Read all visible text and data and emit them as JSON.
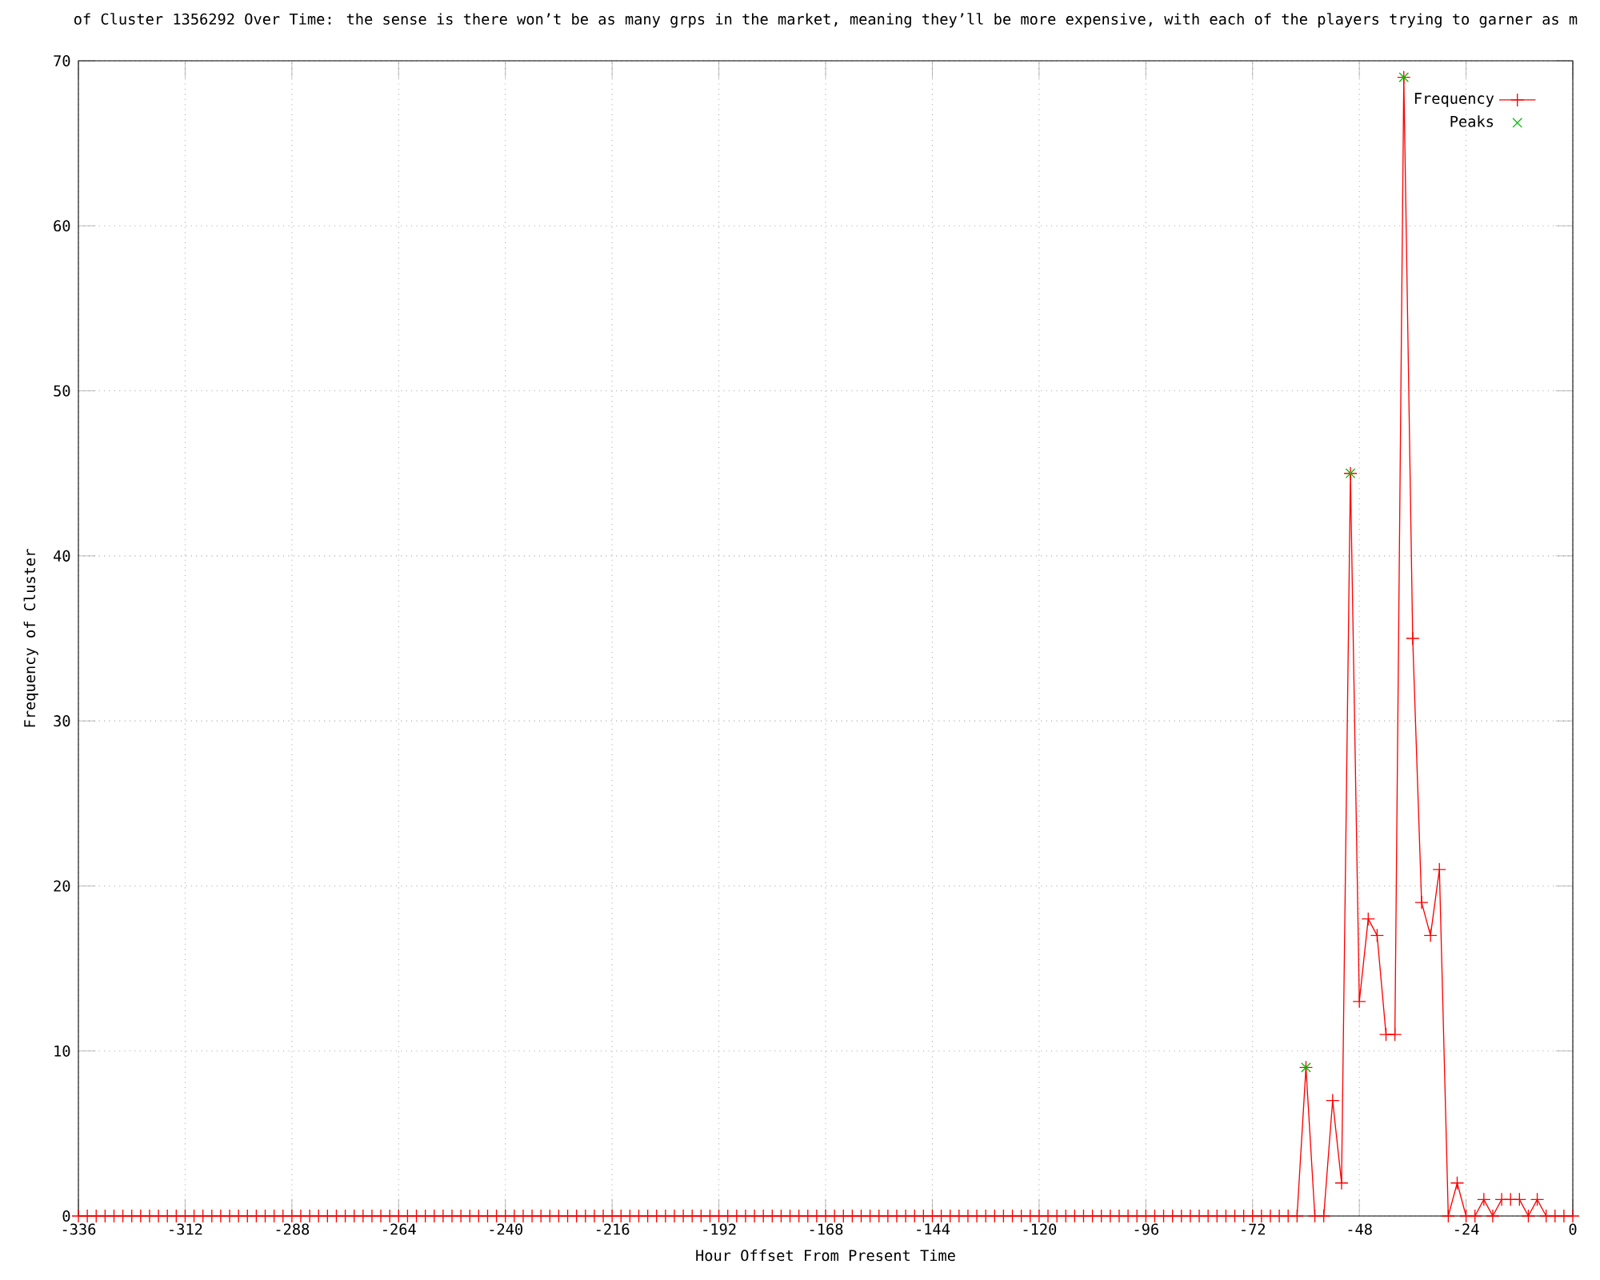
{
  "chart_data": {
    "type": "line",
    "title": "of Cluster 1356292 Over Time: the sense is there won’t be as many grps in the market, meaning they’ll be more expensive, with each of the players trying to garner as m",
    "xlabel": "Hour Offset From Present Time",
    "ylabel": "Frequency of Cluster",
    "x": [
      -336,
      -334,
      -332,
      -330,
      -328,
      -326,
      -324,
      -322,
      -320,
      -318,
      -316,
      -314,
      -312,
      -310,
      -308,
      -306,
      -304,
      -302,
      -300,
      -298,
      -296,
      -294,
      -292,
      -290,
      -288,
      -286,
      -284,
      -282,
      -280,
      -278,
      -276,
      -274,
      -272,
      -270,
      -268,
      -266,
      -264,
      -262,
      -260,
      -258,
      -256,
      -254,
      -252,
      -250,
      -248,
      -246,
      -244,
      -242,
      -240,
      -238,
      -236,
      -234,
      -232,
      -230,
      -228,
      -226,
      -224,
      -222,
      -220,
      -218,
      -216,
      -214,
      -212,
      -210,
      -208,
      -206,
      -204,
      -202,
      -200,
      -198,
      -196,
      -194,
      -192,
      -190,
      -188,
      -186,
      -184,
      -182,
      -180,
      -178,
      -176,
      -174,
      -172,
      -170,
      -168,
      -166,
      -164,
      -162,
      -160,
      -158,
      -156,
      -154,
      -152,
      -150,
      -148,
      -146,
      -144,
      -142,
      -140,
      -138,
      -136,
      -134,
      -132,
      -130,
      -128,
      -126,
      -124,
      -122,
      -120,
      -118,
      -116,
      -114,
      -112,
      -110,
      -108,
      -106,
      -104,
      -102,
      -100,
      -98,
      -96,
      -94,
      -92,
      -90,
      -88,
      -86,
      -84,
      -82,
      -80,
      -78,
      -76,
      -74,
      -72,
      -70,
      -68,
      -66,
      -64,
      -62,
      -60,
      -58,
      -56,
      -54,
      -52,
      -50,
      -48,
      -46,
      -44,
      -42,
      -40,
      -38,
      -36,
      -34,
      -32,
      -30,
      -28,
      -26,
      -24,
      -22,
      -20,
      -18,
      -16,
      -14,
      -12,
      -10,
      -8,
      -6,
      -4,
      -2,
      0
    ],
    "series": [
      {
        "name": "Frequency",
        "marker": "cross",
        "color": "#ff0000",
        "values": [
          0,
          0,
          0,
          0,
          0,
          0,
          0,
          0,
          0,
          0,
          0,
          0,
          0,
          0,
          0,
          0,
          0,
          0,
          0,
          0,
          0,
          0,
          0,
          0,
          0,
          0,
          0,
          0,
          0,
          0,
          0,
          0,
          0,
          0,
          0,
          0,
          0,
          0,
          0,
          0,
          0,
          0,
          0,
          0,
          0,
          0,
          0,
          0,
          0,
          0,
          0,
          0,
          0,
          0,
          0,
          0,
          0,
          0,
          0,
          0,
          0,
          0,
          0,
          0,
          0,
          0,
          0,
          0,
          0,
          0,
          0,
          0,
          0,
          0,
          0,
          0,
          0,
          0,
          0,
          0,
          0,
          0,
          0,
          0,
          0,
          0,
          0,
          0,
          0,
          0,
          0,
          0,
          0,
          0,
          0,
          0,
          0,
          0,
          0,
          0,
          0,
          0,
          0,
          0,
          0,
          0,
          0,
          0,
          0,
          0,
          0,
          0,
          0,
          0,
          0,
          0,
          0,
          0,
          0,
          0,
          0,
          0,
          0,
          0,
          0,
          0,
          0,
          0,
          0,
          0,
          0,
          0,
          0,
          0,
          0,
          0,
          0,
          0,
          9,
          0,
          0,
          7,
          2,
          45,
          13,
          18,
          17,
          11,
          11,
          69,
          35,
          19,
          17,
          21,
          0,
          2,
          0,
          0,
          1,
          0,
          1,
          1,
          1,
          0,
          1,
          0,
          0,
          0,
          0
        ]
      },
      {
        "name": "Peaks",
        "type": "scatter",
        "marker": "cross",
        "color": "#00c000",
        "x": [
          -60,
          -50,
          -38
        ],
        "values": [
          9,
          45,
          69
        ]
      }
    ],
    "xlim": [
      -336,
      0
    ],
    "ylim": [
      0,
      70
    ],
    "xticks": [
      -336,
      -312,
      -288,
      -264,
      -240,
      -216,
      -192,
      -168,
      -144,
      -120,
      -96,
      -72,
      -48,
      -24,
      0
    ],
    "yticks": [
      0,
      10,
      20,
      30,
      40,
      50,
      60,
      70
    ],
    "grid": true,
    "legend": "top right"
  }
}
